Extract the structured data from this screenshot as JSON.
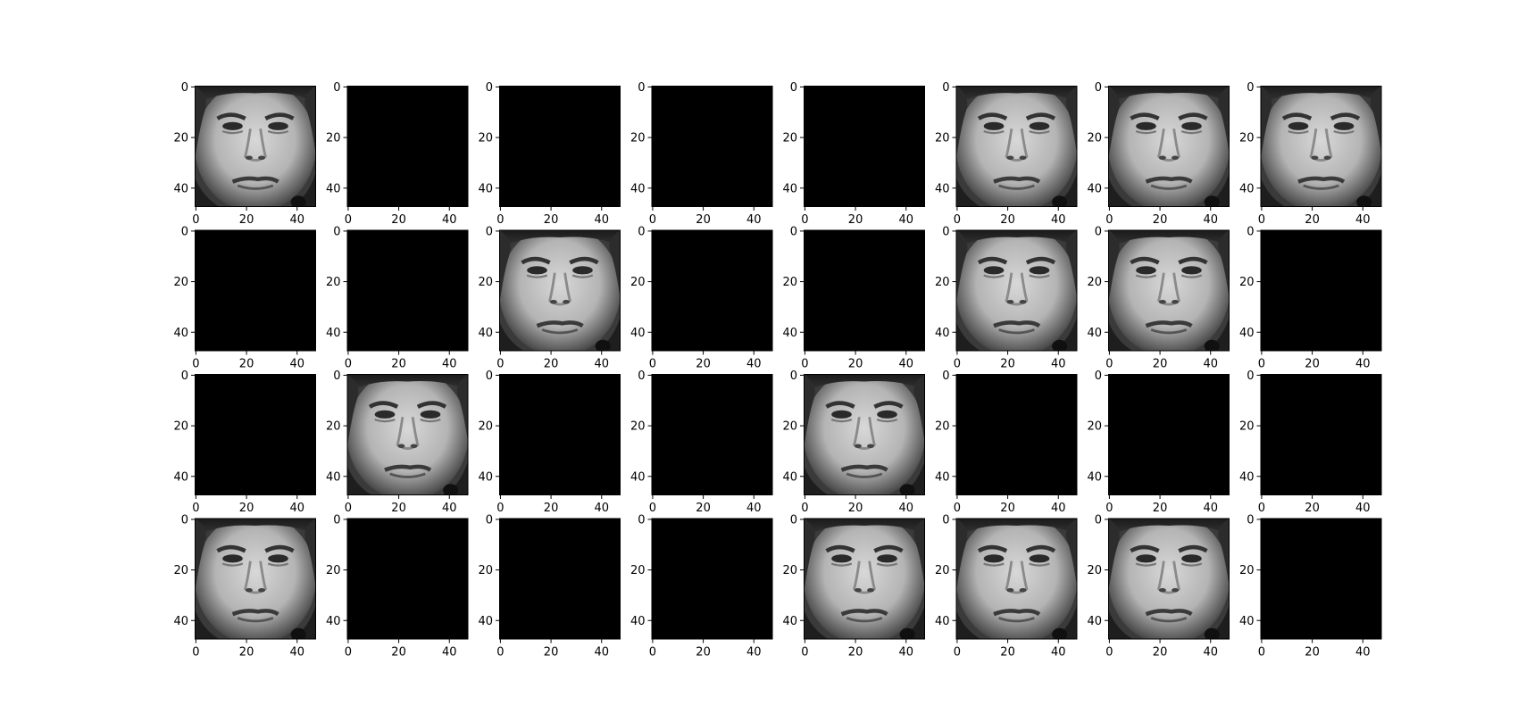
{
  "figure": {
    "rows": 4,
    "cols": 8,
    "image_size": [
      48,
      48
    ],
    "tick_values": [
      0,
      20,
      40
    ],
    "tick_labels": [
      "0",
      "20",
      "40"
    ],
    "colormap": "gray",
    "background": "#ffffff",
    "blank_color": "#000000"
  },
  "panels": [
    {
      "content": "face"
    },
    {
      "content": "blank"
    },
    {
      "content": "blank"
    },
    {
      "content": "blank"
    },
    {
      "content": "blank"
    },
    {
      "content": "face"
    },
    {
      "content": "face"
    },
    {
      "content": "face"
    },
    {
      "content": "blank"
    },
    {
      "content": "blank"
    },
    {
      "content": "face"
    },
    {
      "content": "blank"
    },
    {
      "content": "blank"
    },
    {
      "content": "face"
    },
    {
      "content": "face"
    },
    {
      "content": "blank"
    },
    {
      "content": "blank"
    },
    {
      "content": "face"
    },
    {
      "content": "blank"
    },
    {
      "content": "blank"
    },
    {
      "content": "face"
    },
    {
      "content": "blank"
    },
    {
      "content": "blank"
    },
    {
      "content": "blank"
    },
    {
      "content": "face"
    },
    {
      "content": "blank"
    },
    {
      "content": "blank"
    },
    {
      "content": "blank"
    },
    {
      "content": "face"
    },
    {
      "content": "face"
    },
    {
      "content": "face"
    },
    {
      "content": "blank"
    }
  ]
}
